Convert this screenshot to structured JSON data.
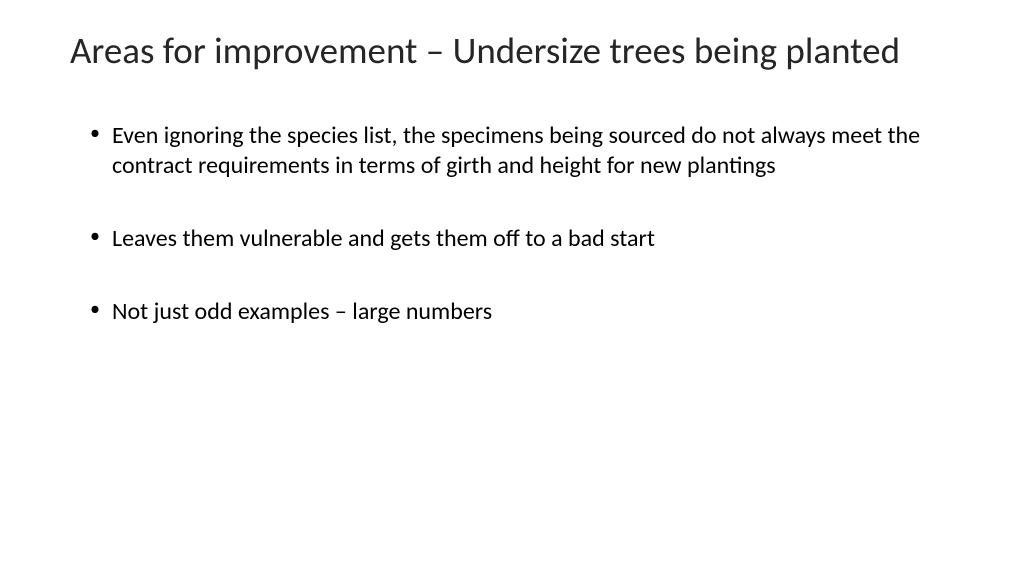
{
  "slide": {
    "title": "Areas for improvement – Undersize trees being planted",
    "bullets": [
      "Even ignoring the species list, the specimens being sourced do not always meet the contract requirements in terms of girth and height for new plantings",
      "Leaves them vulnerable and gets them off to a bad start",
      "Not just odd examples – large numbers"
    ],
    "styling": {
      "background_color": "#ffffff",
      "title_color": "#262626",
      "title_fontsize": 37,
      "title_fontweight": 400,
      "body_color": "#000000",
      "body_fontsize": 24,
      "body_fontweight": 400,
      "font_family": "Calibri",
      "bullet_char": "•"
    }
  }
}
